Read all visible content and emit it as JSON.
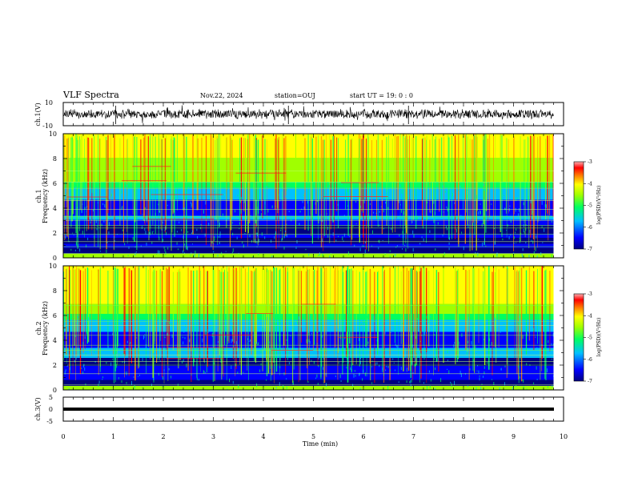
{
  "header": {
    "title": "VLF Spectra",
    "date": "Nov.22, 2024",
    "station": "station=OUJ",
    "start": "start UT =  19: 0  : 0"
  },
  "chart_data": [
    {
      "type": "line",
      "name": "ch1-waveform",
      "ylabel": "ch.1(V)",
      "ylim": [
        -10,
        10
      ],
      "yticks": [
        "10",
        "-10"
      ],
      "xlim": [
        0,
        10
      ]
    },
    {
      "type": "heatmap",
      "name": "ch1-spectrogram",
      "ylabel_line1": "ch.1",
      "ylabel_line2": "Frequency (kHz)",
      "ylim": [
        0,
        10
      ],
      "yticks": [
        "0",
        "2",
        "4",
        "6",
        "8",
        "10"
      ],
      "xlim": [
        0,
        10
      ],
      "colorbar": {
        "range": [
          -7,
          -3
        ],
        "ticks": [
          "-3",
          "-4",
          "-5",
          "-6",
          "-7"
        ],
        "label": "log(PSD)(V²/Hz)"
      }
    },
    {
      "type": "heatmap",
      "name": "ch2-spectrogram",
      "ylabel_line1": "ch.2",
      "ylabel_line2": "Frequency (kHz)",
      "ylim": [
        0,
        10
      ],
      "yticks": [
        "0",
        "2",
        "4",
        "6",
        "8",
        "10"
      ],
      "xlim": [
        0,
        10
      ],
      "colorbar": {
        "range": [
          -7,
          -3
        ],
        "ticks": [
          "-3",
          "-4",
          "-5",
          "-6",
          "-7"
        ],
        "label": "log(PSD)(V²/Hz)"
      }
    },
    {
      "type": "line",
      "name": "ch3-waveform",
      "ylabel": "ch.3(V)",
      "ylim": [
        -5,
        5
      ],
      "yticks": [
        "5",
        "0",
        "-5"
      ],
      "xlim": [
        0,
        10
      ],
      "x_data_end": 9.8
    }
  ],
  "xaxis": {
    "label": "Time (min)",
    "ticks": [
      "0",
      "1",
      "2",
      "3",
      "4",
      "5",
      "6",
      "7",
      "8",
      "9",
      "10"
    ]
  },
  "colors": {
    "cmap": [
      "#000080",
      "#0000ff",
      "#00c0ff",
      "#00ff60",
      "#a0ff00",
      "#ffff00",
      "#ff8000",
      "#ff0000",
      "#ffb0b0"
    ]
  }
}
